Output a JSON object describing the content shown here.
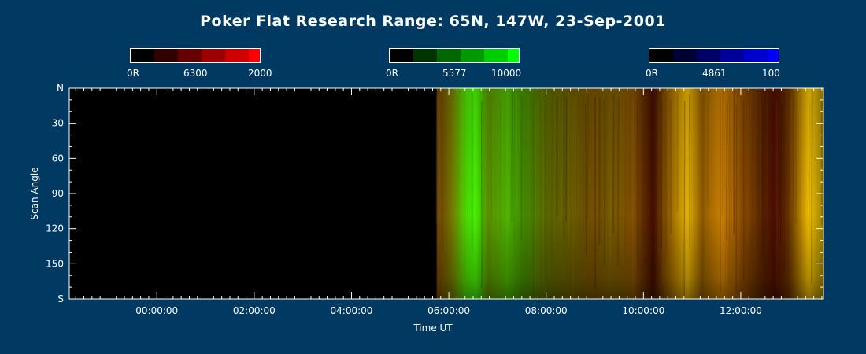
{
  "chart_data": {
    "type": "heatmap",
    "title": "Poker Flat Research Range: 65N, 147W, 23-Sep-2001",
    "xlabel": "Time UT",
    "ylabel": "Scan Angle",
    "x_ticks": [
      "00:00:00",
      "02:00:00",
      "04:00:00",
      "06:00:00",
      "08:00:00",
      "10:00:00",
      "12:00:00"
    ],
    "y_ticks": [
      "N",
      "30",
      "60",
      "90",
      "120",
      "150",
      "S"
    ],
    "xlim_hours": [
      -1.8,
      13.7
    ],
    "ylim_deg": [
      0,
      180
    ],
    "data_start_hour": 5.75,
    "colorbars": [
      {
        "name": "6300",
        "min_label": "0R",
        "mid_label": "6300",
        "max_label": "2000",
        "color": "#ff0000"
      },
      {
        "name": "5577",
        "min_label": "0R",
        "mid_label": "5577",
        "max_label": "10000",
        "color": "#00ff00"
      },
      {
        "name": "4861",
        "min_label": "0R",
        "mid_label": "4861",
        "max_label": "100",
        "color": "#0000ff"
      }
    ],
    "emission_profile": [
      {
        "hour": 5.75,
        "red": 0.45,
        "green": 0.25
      },
      {
        "hour": 6.05,
        "red": 0.45,
        "green": 0.45
      },
      {
        "hour": 6.35,
        "red": 0.3,
        "green": 0.85
      },
      {
        "hour": 6.55,
        "red": 0.25,
        "green": 0.95
      },
      {
        "hour": 6.8,
        "red": 0.35,
        "green": 0.55
      },
      {
        "hour": 7.2,
        "red": 0.3,
        "green": 0.7
      },
      {
        "hour": 7.5,
        "red": 0.25,
        "green": 0.55
      },
      {
        "hour": 8.0,
        "red": 0.35,
        "green": 0.4
      },
      {
        "hour": 8.5,
        "red": 0.4,
        "green": 0.35
      },
      {
        "hour": 9.0,
        "red": 0.45,
        "green": 0.3
      },
      {
        "hour": 9.3,
        "red": 0.45,
        "green": 0.35
      },
      {
        "hour": 9.8,
        "red": 0.5,
        "green": 0.3
      },
      {
        "hour": 10.2,
        "red": 0.25,
        "green": 0.05
      },
      {
        "hour": 10.5,
        "red": 0.55,
        "green": 0.35
      },
      {
        "hour": 10.9,
        "red": 0.9,
        "green": 0.7
      },
      {
        "hour": 11.2,
        "red": 0.55,
        "green": 0.35
      },
      {
        "hour": 11.6,
        "red": 0.8,
        "green": 0.5
      },
      {
        "hour": 12.0,
        "red": 0.55,
        "green": 0.3
      },
      {
        "hour": 12.4,
        "red": 0.35,
        "green": 0.15
      },
      {
        "hour": 12.7,
        "red": 0.3,
        "green": 0.05
      },
      {
        "hour": 13.0,
        "red": 0.4,
        "green": 0.2
      },
      {
        "hour": 13.4,
        "red": 0.95,
        "green": 0.75
      },
      {
        "hour": 13.7,
        "red": 0.6,
        "green": 0.5
      }
    ]
  }
}
